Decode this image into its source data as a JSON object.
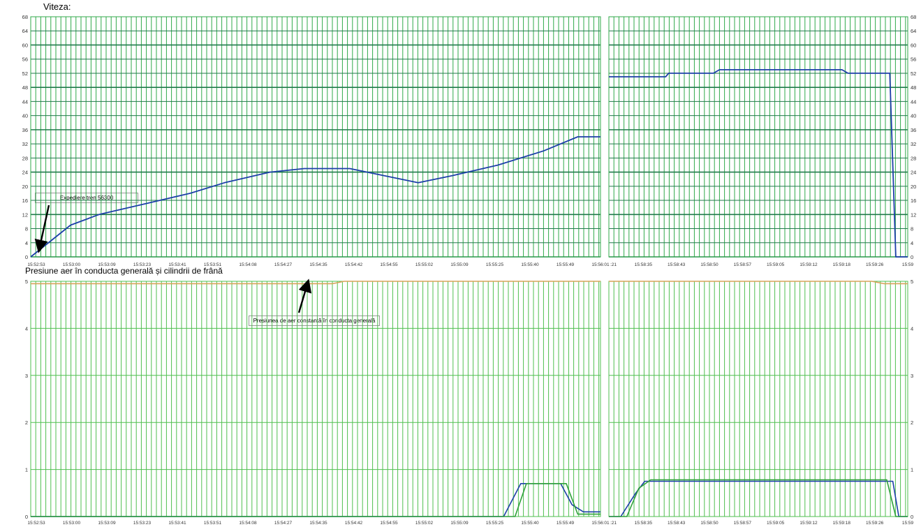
{
  "colors": {
    "grid_vertical": "#2fa94a",
    "grid_horizontal_speed": "#1f7a4a",
    "grid_line_pressure": "#4fbf4f",
    "speed_line": "#1d3fa8",
    "pipe_pressure_line": "#d8a35a",
    "cylinder_pressure_blue": "#1d3fa8",
    "cylinder_pressure_green": "#2fa13a",
    "axis_text": "#333333"
  },
  "chart_data": [
    {
      "type": "line",
      "title": "Viteza:",
      "ylim": [
        0,
        68
      ],
      "yticks": [
        0,
        4,
        8,
        12,
        16,
        20,
        24,
        28,
        32,
        36,
        40,
        44,
        48,
        52,
        56,
        60,
        64,
        68
      ],
      "grid": true,
      "left_segment_xticks": [
        "15:52:53",
        "15:53:00",
        "15:53:09",
        "15:53:23",
        "15:53:41",
        "15:53:51",
        "15:54:08",
        "15:54:27",
        "15:54:35",
        "15:54:42",
        "15:54:55",
        "15:55:02",
        "15:55:09",
        "15:55:25",
        "15:55:40",
        "15:55:49",
        "15:56:01"
      ],
      "right_segment_xticks": [
        ":21",
        "15:58:35",
        "15:58:43",
        "15:58:50",
        "15:58:57",
        "15:59:05",
        "15:59:12",
        "15:59:18",
        "15:59:26",
        "15:59"
      ],
      "series": [
        {
          "segment": "left",
          "points": [
            [
              0,
              0
            ],
            [
              0.07,
              9
            ],
            [
              0.12,
              12
            ],
            [
              0.2,
              15
            ],
            [
              0.28,
              18
            ],
            [
              0.34,
              21
            ],
            [
              0.42,
              24
            ],
            [
              0.48,
              25
            ],
            [
              0.56,
              25
            ],
            [
              0.62,
              23
            ],
            [
              0.68,
              21
            ],
            [
              0.74,
              23
            ],
            [
              0.82,
              26
            ],
            [
              0.9,
              30
            ],
            [
              0.96,
              34
            ],
            [
              1.0,
              34
            ]
          ]
        },
        {
          "segment": "right",
          "points": [
            [
              0.0,
              51
            ],
            [
              0.19,
              51
            ],
            [
              0.2,
              52
            ],
            [
              0.35,
              52
            ],
            [
              0.37,
              53
            ],
            [
              0.78,
              53
            ],
            [
              0.8,
              52
            ],
            [
              0.94,
              52
            ],
            [
              0.96,
              0
            ],
            [
              1.0,
              0
            ]
          ]
        }
      ],
      "annotations": [
        {
          "text": "Expediere tren 56300"
        }
      ]
    },
    {
      "type": "line",
      "title": "Presiune aer în conducta generală și cilindrii de frână",
      "ylim": [
        0,
        5
      ],
      "yticks": [
        0,
        1,
        2,
        3,
        4,
        5
      ],
      "grid": true,
      "left_segment_xticks": [
        "15:52:53",
        "15:53:00",
        "15:53:09",
        "15:53:23",
        "15:53:41",
        "15:53:51",
        "15:54:08",
        "15:54:27",
        "15:54:35",
        "15:54:42",
        "15:54:55",
        "15:55:02",
        "15:55:09",
        "15:55:25",
        "15:55:40",
        "15:55:49",
        "15:56:01"
      ],
      "right_segment_xticks": [
        ":21",
        "15:58:35",
        "15:58:43",
        "15:58:50",
        "15:58:57",
        "15:59:05",
        "15:59:12",
        "15:59:18",
        "15:59:26",
        "15:59"
      ],
      "series": [
        {
          "segment": "left",
          "role": "pipe",
          "points": [
            [
              0,
              4.95
            ],
            [
              0.53,
              4.95
            ],
            [
              0.55,
              5.0
            ],
            [
              1.0,
              5.0
            ]
          ]
        },
        {
          "segment": "left",
          "role": "cylinder-blue",
          "points": [
            [
              0,
              0
            ],
            [
              0.83,
              0
            ],
            [
              0.86,
              0.7
            ],
            [
              0.93,
              0.7
            ],
            [
              0.95,
              0.25
            ],
            [
              0.97,
              0.1
            ],
            [
              1.0,
              0.1
            ]
          ]
        },
        {
          "segment": "left",
          "role": "cylinder-green",
          "points": [
            [
              0,
              0
            ],
            [
              0.85,
              0
            ],
            [
              0.87,
              0.7
            ],
            [
              0.94,
              0.7
            ],
            [
              0.96,
              0.05
            ],
            [
              1.0,
              0.05
            ]
          ]
        },
        {
          "segment": "right",
          "role": "pipe",
          "points": [
            [
              0,
              5.0
            ],
            [
              0.88,
              5.0
            ],
            [
              0.92,
              4.95
            ],
            [
              1.0,
              4.95
            ]
          ]
        },
        {
          "segment": "right",
          "role": "cylinder-blue",
          "points": [
            [
              0,
              0
            ],
            [
              0.04,
              0
            ],
            [
              0.09,
              0.5
            ],
            [
              0.12,
              0.75
            ],
            [
              0.95,
              0.75
            ],
            [
              0.97,
              0
            ],
            [
              1.0,
              0
            ]
          ]
        },
        {
          "segment": "right",
          "role": "cylinder-green",
          "points": [
            [
              0,
              0
            ],
            [
              0.06,
              0
            ],
            [
              0.1,
              0.6
            ],
            [
              0.14,
              0.78
            ],
            [
              0.93,
              0.78
            ],
            [
              0.96,
              0
            ],
            [
              1.0,
              0
            ]
          ]
        }
      ],
      "annotations": [
        {
          "text": "Presiunea de aer constantă în conducta generală"
        }
      ]
    }
  ]
}
